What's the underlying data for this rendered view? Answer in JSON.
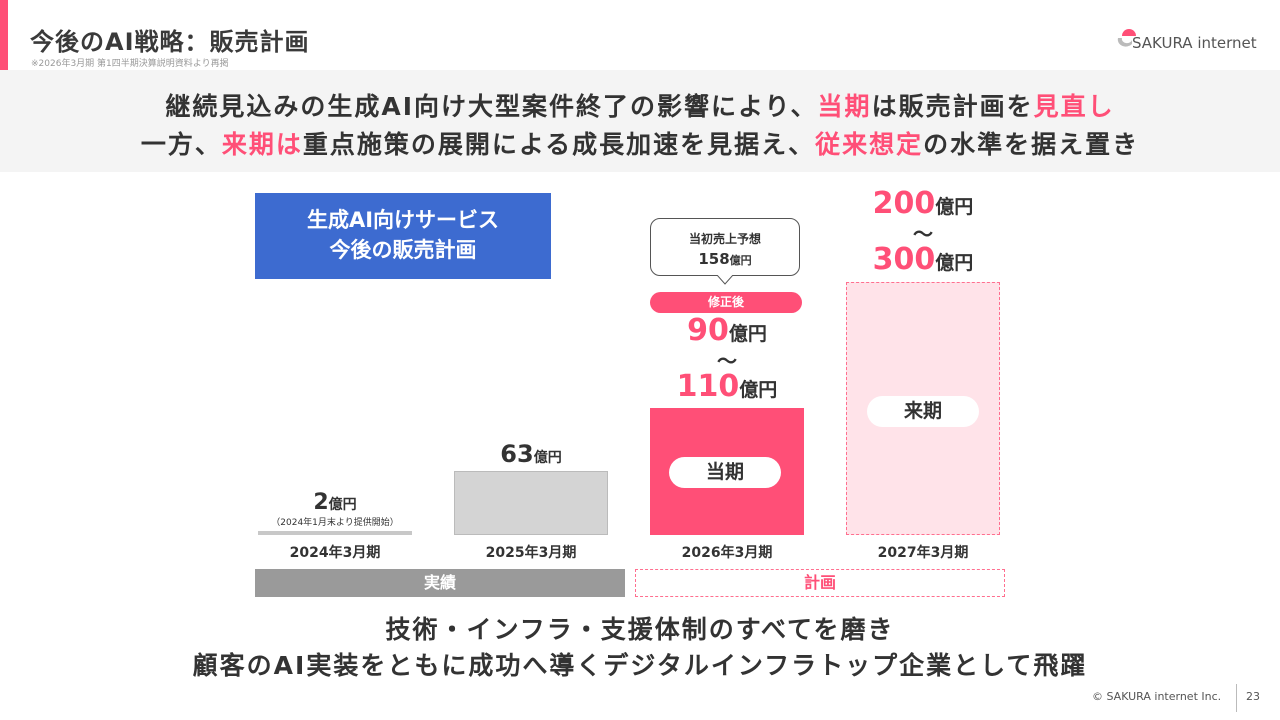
{
  "header": {
    "title": "今後のAI戦略：販売計画",
    "subtitle": "※2026年3月期 第1四半期決算説明資料より再掲",
    "logo_text": "SAKURA internet"
  },
  "message": {
    "line1": [
      {
        "t": "継続見込みの生成AI向け大型案件終了の影響により、",
        "hl": false
      },
      {
        "t": "当期",
        "hl": true
      },
      {
        "t": "は販売計画を",
        "hl": false
      },
      {
        "t": "見直し",
        "hl": true
      }
    ],
    "line2": [
      {
        "t": "一方、",
        "hl": false
      },
      {
        "t": "来期は",
        "hl": true
      },
      {
        "t": "重点施策の展開による成長加速を見据え、",
        "hl": false
      },
      {
        "t": "従来想定",
        "hl": true
      },
      {
        "t": "の水準を据え置き",
        "hl": false
      }
    ]
  },
  "box": {
    "line1": "生成AI向けサービス",
    "line2": "今後の販売計画"
  },
  "chart_data": {
    "type": "bar",
    "unit": "億円",
    "categories": [
      "2024年3月期",
      "2025年3月期",
      "2026年3月期",
      "2027年3月期"
    ],
    "values": [
      2,
      63,
      [
        90,
        110
      ],
      [
        200,
        300
      ]
    ],
    "labels": {
      "c0": {
        "value": "2",
        "unit": "億円",
        "note": "（2024年1月末より提供開始）"
      },
      "c1": {
        "value": "63",
        "unit": "億円"
      },
      "c2": {
        "low": "90",
        "high": "110",
        "unit": "億円",
        "tilde": "〜",
        "badge": "修正後",
        "pill": "当期",
        "bubble_title": "当初売上予想",
        "bubble_value": "158",
        "bubble_unit": "億円"
      },
      "c3": {
        "low": "200",
        "high": "300",
        "unit": "億円",
        "tilde": "〜",
        "pill": "来期"
      }
    },
    "original_forecast_2026": 158,
    "groups": {
      "actual": "実績",
      "plan": "計画"
    },
    "colors": {
      "actual": "#d4d4d4",
      "current": "#ff4f77",
      "next": "#ffe3e9",
      "accent": "#ff4f77"
    }
  },
  "bottom": {
    "line1": "技術・インフラ・支援体制のすべてを磨き",
    "line2": "顧客のAI実装をともに成功へ導くデジタルインフラトップ企業として飛躍"
  },
  "footer": {
    "copyright": "© SAKURA internet Inc.",
    "page": "23"
  }
}
